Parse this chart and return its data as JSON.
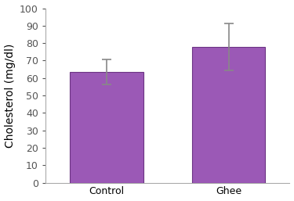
{
  "categories": [
    "Control",
    "Ghee"
  ],
  "values": [
    63.5,
    78.0
  ],
  "errors": [
    7.0,
    13.5
  ],
  "bar_color": "#9b59b6",
  "bar_edgecolor": "#6c3483",
  "bar_width": 0.6,
  "ylabel": "Cholesterol (mg/dl)",
  "ylim": [
    0,
    100
  ],
  "yticks": [
    0,
    10,
    20,
    30,
    40,
    50,
    60,
    70,
    80,
    90,
    100
  ],
  "background_color": "#ffffff",
  "errorbar_color": "#888888",
  "errorbar_capsize": 4,
  "errorbar_linewidth": 1.2,
  "tick_fontsize": 9,
  "ylabel_fontsize": 10,
  "spine_color": "#aaaaaa",
  "xlim": [
    -0.5,
    1.5
  ]
}
